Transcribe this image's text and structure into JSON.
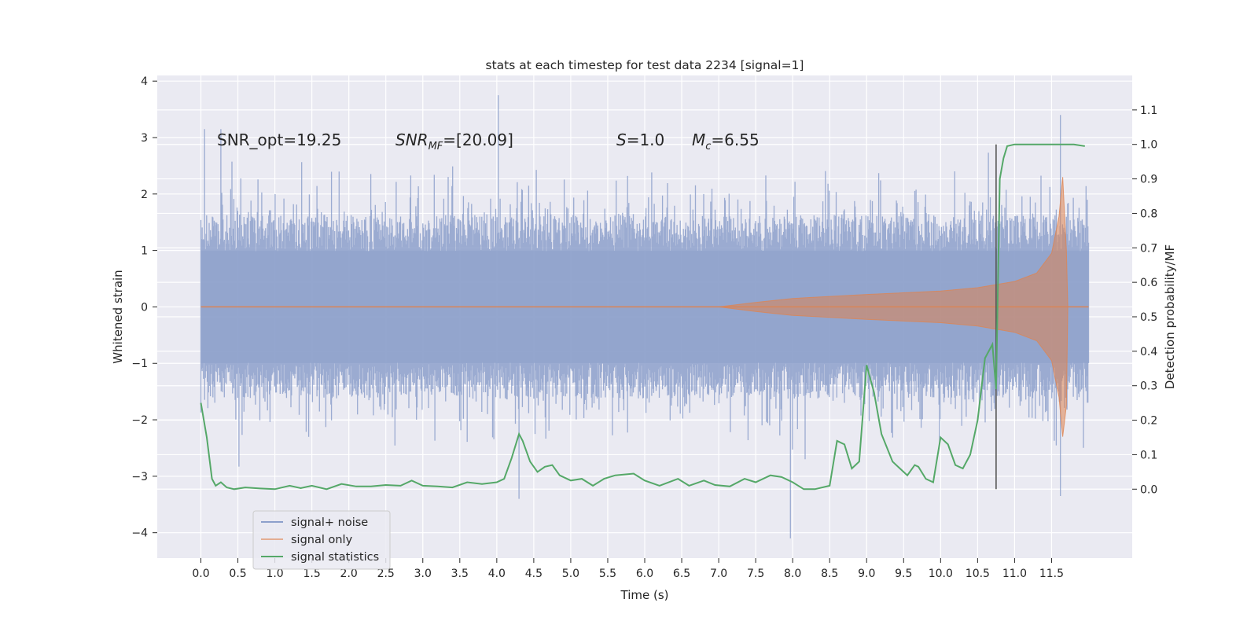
{
  "chart_data": {
    "type": "line",
    "title": "stats at each timestep for test data 2234 [signal=1]",
    "xlabel": "Time (s)",
    "ylabel": "Whitened strain",
    "ylabel_right": "Detection probability/MF",
    "xlim": [
      -0.59,
      12.59
    ],
    "ylim": [
      -4.45,
      4.1
    ],
    "ylim_right": [
      -0.2,
      1.2
    ],
    "xticks": [
      "0.0",
      "0.5",
      "1.0",
      "1.5",
      "2.0",
      "2.5",
      "3.0",
      "3.5",
      "4.0",
      "4.5",
      "5.0",
      "5.5",
      "6.0",
      "6.5",
      "7.0",
      "7.5",
      "8.0",
      "8.5",
      "9.0",
      "9.5",
      "10.0",
      "10.5",
      "11.0",
      "11.5"
    ],
    "yticks": [
      "4",
      "3",
      "2",
      "1",
      "0",
      "−1",
      "−2",
      "−3",
      "−4"
    ],
    "yticks_right": [
      "1.1",
      "1.0",
      "0.9",
      "0.8",
      "0.7",
      "0.6",
      "0.5",
      "0.4",
      "0.3",
      "0.2",
      "0.1",
      "0.0"
    ],
    "grid": true,
    "legend": {
      "placement": "lower-left",
      "entries": [
        "signal+ noise",
        "signal only",
        "signal statistics"
      ]
    },
    "annotations": {
      "snr_opt_text": "SNR_opt=19.25",
      "snr_mf_base": "SNR",
      "snr_mf_sub": "MF",
      "snr_mf_value": "=[20.09]",
      "s_sym": "S",
      "s_value": "=1.0",
      "mc_base": "M",
      "mc_sub": "c",
      "mc_value": "=6.55"
    },
    "marker_line_x": 10.75,
    "colors": {
      "noise": "#8da0cb",
      "signal": "#dd8452",
      "stat": "#55a868",
      "marker": "#555555",
      "plot_bg": "#eaeaf2"
    },
    "series": [
      {
        "name": "signal+ noise",
        "x_range": [
          0.0,
          12.0
        ],
        "typical_amplitude": 1.3,
        "peak_values": [
          [
            0.05,
            3.15
          ],
          [
            0.27,
            3.15
          ],
          [
            4.02,
            3.75
          ],
          [
            4.3,
            -3.4
          ],
          [
            7.97,
            -4.1
          ],
          [
            11.62,
            3.4
          ],
          [
            11.62,
            -3.35
          ]
        ]
      },
      {
        "name": "signal only",
        "envelope_x": [
          0.0,
          7.0,
          7.5,
          8.0,
          9.0,
          10.0,
          10.5,
          11.0,
          11.3,
          11.5,
          11.6,
          11.65,
          11.7,
          11.72,
          12.0
        ],
        "envelope_y": [
          0.0,
          0.0,
          0.08,
          0.15,
          0.22,
          0.28,
          0.34,
          0.45,
          0.6,
          0.95,
          1.6,
          2.3,
          1.0,
          0.0,
          0.0
        ]
      },
      {
        "name": "signal statistics",
        "x": [
          0.0,
          0.08,
          0.15,
          0.2,
          0.27,
          0.35,
          0.45,
          0.6,
          0.8,
          1.0,
          1.2,
          1.35,
          1.5,
          1.7,
          1.9,
          2.1,
          2.3,
          2.5,
          2.7,
          2.85,
          3.0,
          3.2,
          3.4,
          3.6,
          3.8,
          4.0,
          4.1,
          4.2,
          4.3,
          4.35,
          4.45,
          4.55,
          4.65,
          4.75,
          4.85,
          5.0,
          5.15,
          5.3,
          5.45,
          5.6,
          5.85,
          6.0,
          6.2,
          6.45,
          6.6,
          6.8,
          6.95,
          7.15,
          7.35,
          7.5,
          7.7,
          7.85,
          8.0,
          8.15,
          8.3,
          8.5,
          8.6,
          8.7,
          8.8,
          8.9,
          9.0,
          9.1,
          9.2,
          9.35,
          9.45,
          9.55,
          9.65,
          9.7,
          9.8,
          9.9,
          10.0,
          10.1,
          10.2,
          10.3,
          10.4,
          10.5,
          10.6,
          10.7,
          10.75,
          10.8,
          10.85,
          10.9,
          11.0,
          11.2,
          11.5,
          11.8,
          11.95
        ],
        "y": [
          0.25,
          0.15,
          0.03,
          0.01,
          0.02,
          0.005,
          0.0,
          0.005,
          0.002,
          0.0,
          0.01,
          0.003,
          0.01,
          0.0,
          0.015,
          0.008,
          0.008,
          0.012,
          0.01,
          0.025,
          0.01,
          0.008,
          0.005,
          0.02,
          0.015,
          0.02,
          0.03,
          0.09,
          0.16,
          0.14,
          0.08,
          0.05,
          0.065,
          0.07,
          0.04,
          0.025,
          0.03,
          0.01,
          0.03,
          0.04,
          0.045,
          0.025,
          0.01,
          0.03,
          0.01,
          0.025,
          0.012,
          0.008,
          0.03,
          0.02,
          0.04,
          0.035,
          0.02,
          0.0,
          0.0,
          0.01,
          0.14,
          0.13,
          0.06,
          0.08,
          0.36,
          0.28,
          0.16,
          0.08,
          0.06,
          0.04,
          0.07,
          0.065,
          0.03,
          0.02,
          0.15,
          0.13,
          0.07,
          0.06,
          0.1,
          0.2,
          0.38,
          0.42,
          0.29,
          0.9,
          0.96,
          0.995,
          1.0,
          1.0,
          1.0,
          1.0,
          0.995
        ]
      }
    ]
  }
}
